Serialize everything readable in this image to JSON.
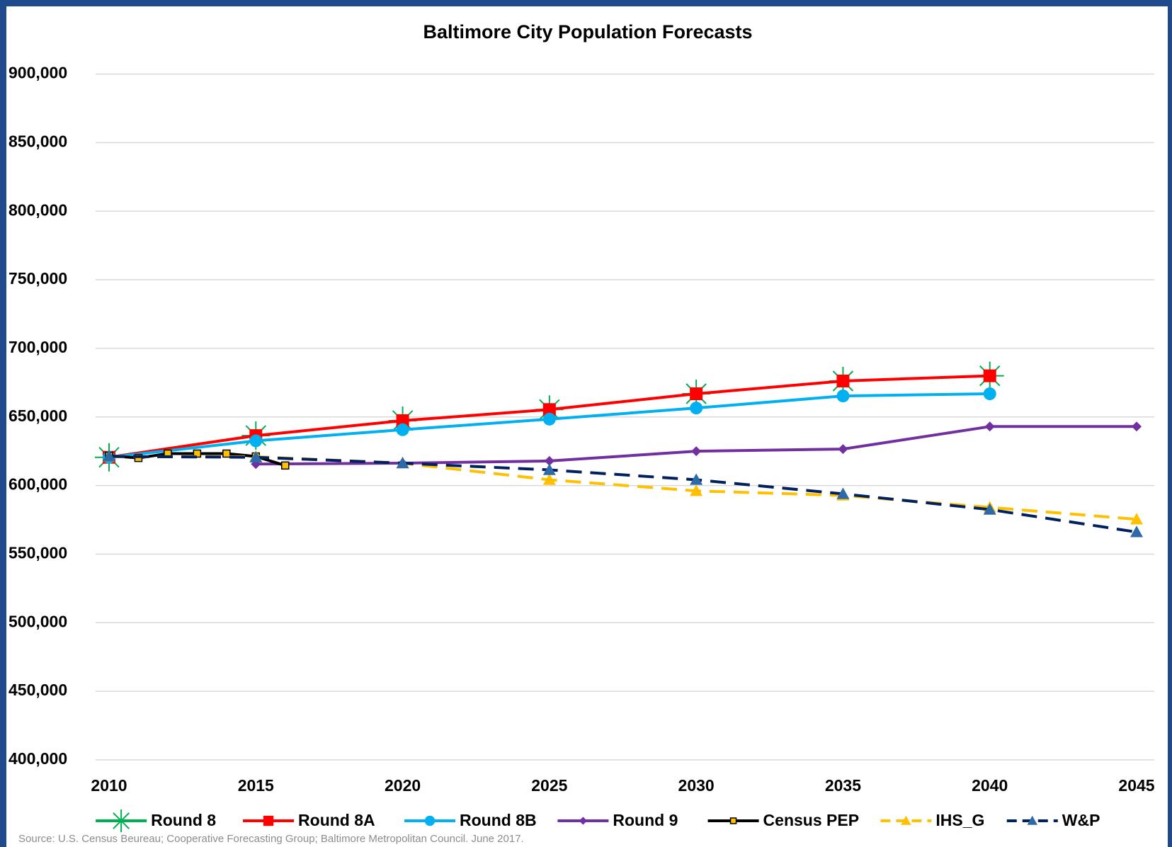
{
  "chart_data": {
    "type": "line",
    "title": "Baltimore City Population Forecasts",
    "source": "Source: U.S. Census Beureau; Cooperative Forecasting Group; Baltimore Metropolitan Council. June 2017.",
    "xlim": [
      2010,
      2045
    ],
    "xticks": [
      2010,
      2015,
      2020,
      2025,
      2030,
      2035,
      2040,
      2045
    ],
    "ylim": [
      400000,
      900000
    ],
    "yticks": [
      {
        "value": 400000,
        "label": "400,000"
      },
      {
        "value": 450000,
        "label": "450,000"
      },
      {
        "value": 500000,
        "label": "500,000"
      },
      {
        "value": 550000,
        "label": "550,000"
      },
      {
        "value": 600000,
        "label": "600,000"
      },
      {
        "value": 650000,
        "label": "650,000"
      },
      {
        "value": 700000,
        "label": "700,000"
      },
      {
        "value": 750000,
        "label": "750,000"
      },
      {
        "value": 800000,
        "label": "800,000"
      },
      {
        "value": 850000,
        "label": "850,000"
      },
      {
        "value": 900000,
        "label": "900,000"
      }
    ],
    "grid": true,
    "legend": "bottom",
    "series": [
      {
        "name": "Round 8",
        "color": "#00b050",
        "marker": "star",
        "dashed": false,
        "x": [
          2010,
          2015,
          2020,
          2025,
          2030,
          2035,
          2040
        ],
        "values": [
          620600,
          636400,
          647300,
          655400,
          666900,
          676200,
          680000
        ]
      },
      {
        "name": "Round 8A",
        "color": "#ff0000",
        "marker": "square",
        "dashed": false,
        "x": [
          2010,
          2015,
          2020,
          2025,
          2030,
          2035,
          2040
        ],
        "values": [
          620600,
          636400,
          647300,
          655400,
          666900,
          676200,
          680000
        ]
      },
      {
        "name": "Round 8B",
        "color": "#00b0f0",
        "marker": "circle",
        "dashed": false,
        "x": [
          2010,
          2015,
          2020,
          2025,
          2030,
          2035,
          2040
        ],
        "values": [
          620600,
          632600,
          640700,
          648400,
          656500,
          665300,
          666900
        ]
      },
      {
        "name": "Round 9",
        "color": "#7030a0",
        "marker": "diamond",
        "dashed": false,
        "x": [
          2015,
          2020,
          2025,
          2030,
          2035,
          2040,
          2045
        ],
        "values": [
          615700,
          616300,
          617900,
          625000,
          626600,
          643000,
          643000
        ]
      },
      {
        "name": "Census PEP",
        "color": "#000000",
        "marker": "small-square",
        "marker_color": "#ffc000",
        "dashed": false,
        "x": [
          2010,
          2011,
          2012,
          2013,
          2014,
          2015,
          2016
        ],
        "values": [
          621700,
          620100,
          623300,
          623300,
          623300,
          621200,
          614600
        ]
      },
      {
        "name": "IHS_G",
        "color": "#ffc000",
        "marker": "triangle",
        "dashed": true,
        "x": [
          2010,
          2015,
          2020,
          2025,
          2030,
          2035,
          2040,
          2045
        ],
        "values": [
          621000,
          621000,
          616300,
          604200,
          596100,
          592800,
          584100,
          575400
        ]
      },
      {
        "name": "W&P",
        "color": "#002060",
        "marker": "triangle",
        "marker_color": "#2e6aa8",
        "dashed": true,
        "x": [
          2010,
          2015,
          2020,
          2025,
          2030,
          2035,
          2040,
          2045
        ],
        "values": [
          621200,
          620600,
          616300,
          611400,
          604200,
          593900,
          582500,
          566100
        ]
      }
    ]
  }
}
